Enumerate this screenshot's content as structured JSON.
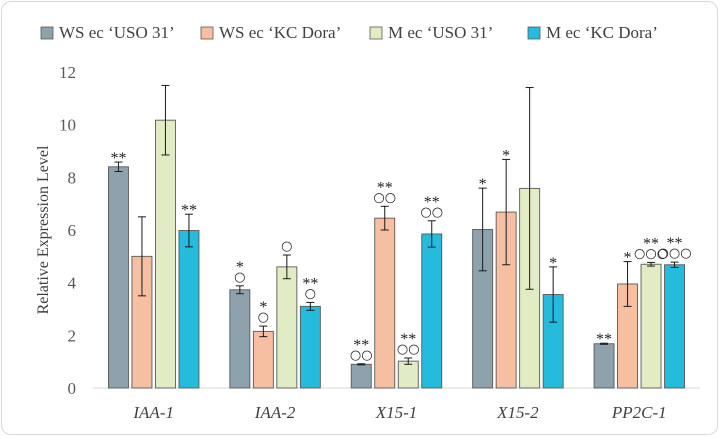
{
  "chart_data": {
    "type": "bar",
    "ylabel": "Relative Expression Level",
    "xlabel": "",
    "ylim": [
      0,
      12
    ],
    "yticks": [
      0,
      2,
      4,
      6,
      8,
      10,
      12
    ],
    "grid": false,
    "legend_position": "top",
    "categories": [
      "IAA-1",
      "IAA-2",
      "X15-1",
      "X15-2",
      "PP2C-1"
    ],
    "series": [
      {
        "name": "WS ec ‘USO 31’",
        "color": "#8ea2ad",
        "values": [
          8.4,
          3.73,
          0.9,
          6.02,
          1.68
        ],
        "errors": [
          0.18,
          0.15,
          0.02,
          1.57,
          0.02
        ],
        "sig_stars": [
          "**",
          "*",
          "**",
          "*",
          "**"
        ],
        "sig_circles": [
          "",
          "○",
          "○○",
          "",
          ""
        ]
      },
      {
        "name": "WS ec ‘KC Dora’",
        "color": "#f6bfa2",
        "values": [
          5.0,
          2.15,
          6.45,
          6.68,
          3.95
        ],
        "errors": [
          1.5,
          0.2,
          0.45,
          2.0,
          0.85
        ],
        "sig_stars": [
          "",
          "*",
          "**",
          "*",
          "*"
        ],
        "sig_circles": [
          "",
          "○",
          "○○",
          "",
          ""
        ]
      },
      {
        "name": "M ec ‘USO 31’",
        "color": "#e2ecc4",
        "values": [
          10.17,
          4.6,
          1.02,
          7.58,
          4.7
        ],
        "errors": [
          1.32,
          0.45,
          0.12,
          3.83,
          0.07
        ],
        "sig_stars": [
          "",
          "",
          "**",
          "",
          "**"
        ],
        "sig_circles": [
          "",
          "○",
          "○○",
          "",
          "○○○"
        ]
      },
      {
        "name": "M ec ‘KC Dora’",
        "color": "#24bbdc",
        "values": [
          5.98,
          3.1,
          5.85,
          3.55,
          4.68
        ],
        "errors": [
          0.62,
          0.15,
          0.5,
          1.05,
          0.1
        ],
        "sig_stars": [
          "**",
          "**",
          "**",
          "*",
          "**"
        ],
        "sig_circles": [
          "",
          "○",
          "○○",
          "",
          "○○○"
        ]
      }
    ]
  }
}
